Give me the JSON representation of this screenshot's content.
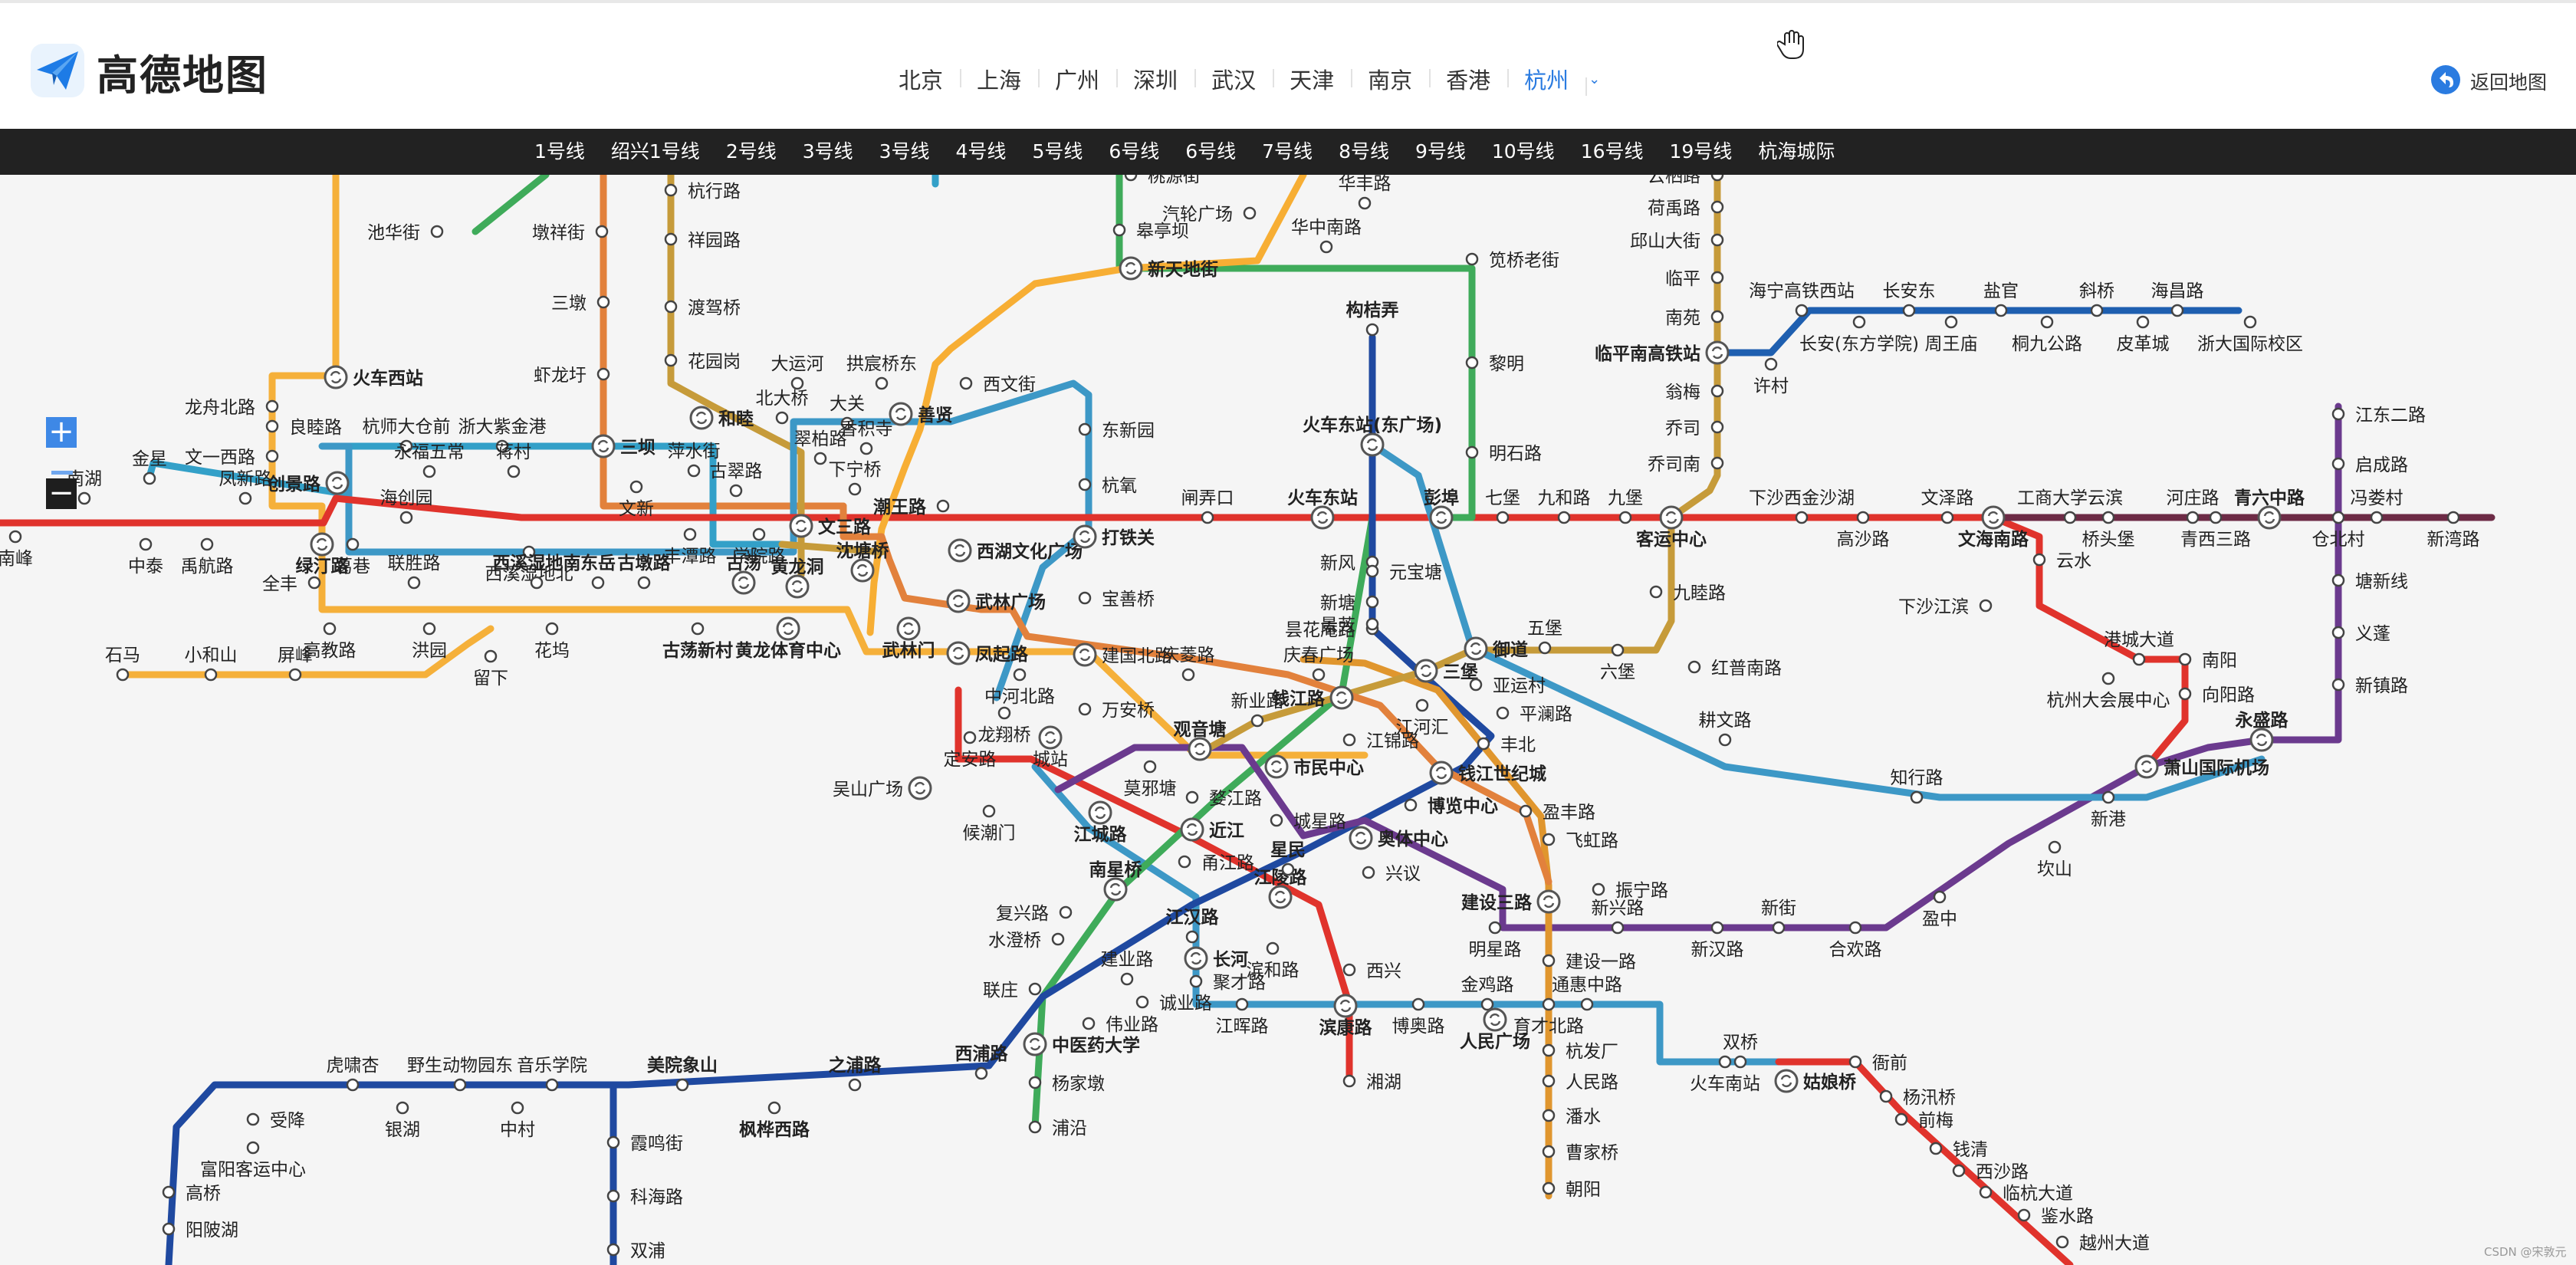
{
  "brand": {
    "name": "高德地图"
  },
  "cities": [
    {
      "label": "北京"
    },
    {
      "label": "上海"
    },
    {
      "label": "广州"
    },
    {
      "label": "深圳"
    },
    {
      "label": "武汉"
    },
    {
      "label": "天津"
    },
    {
      "label": "南京"
    },
    {
      "label": "香港"
    },
    {
      "label": "杭州",
      "active": true
    }
  ],
  "back_label": "返回地图",
  "lines": [
    "1号线",
    "绍兴1号线",
    "2号线",
    "3号线",
    "3号线",
    "4号线",
    "5号线",
    "6号线",
    "6号线",
    "7号线",
    "8号线",
    "9号线",
    "10号线",
    "16号线",
    "19号线",
    "杭海城际"
  ],
  "zoom": {
    "in": "+",
    "out": "−"
  },
  "watermark": "CSDN @宋敦元",
  "colors": {
    "l1": "#e0332c",
    "l2": "#e2813c",
    "l3": "#f7ae34",
    "l4": "#3fab5a",
    "l5": "#3d98c6",
    "l6": "#1f49a0",
    "l7": "#6b3a8e",
    "l9": "#e0962e",
    "l10": "#c69b3a",
    "l16": "#f5b03a",
    "l19": "#33a0c8",
    "hh": "#f2d04a",
    "hn": "#1e5fb0",
    "sx": "#6d2b46"
  },
  "stations": [
    {
      "name": "池华街"
    },
    {
      "name": "墩祥街"
    },
    {
      "name": "杭行路"
    },
    {
      "name": "祥园路"
    },
    {
      "name": "三墩"
    },
    {
      "name": "渡驾桥"
    },
    {
      "name": "虾龙圩"
    },
    {
      "name": "花园岗"
    },
    {
      "name": "火车西站"
    },
    {
      "name": "龙舟北路"
    },
    {
      "name": "良睦路"
    },
    {
      "name": "杭师大仓前"
    },
    {
      "name": "浙大紫金港"
    },
    {
      "name": "三坝"
    },
    {
      "name": "和睦"
    },
    {
      "name": "北大桥"
    },
    {
      "name": "大运河"
    },
    {
      "name": "拱宸桥东"
    },
    {
      "name": "西文街"
    },
    {
      "name": "善贤"
    },
    {
      "name": "大关"
    },
    {
      "name": "香积寺"
    },
    {
      "name": "翠柏路"
    },
    {
      "name": "萍水街"
    },
    {
      "name": "文一西路"
    },
    {
      "name": "金星"
    },
    {
      "name": "创景路"
    },
    {
      "name": "永福五常"
    },
    {
      "name": "蒋村"
    },
    {
      "name": "文新"
    },
    {
      "name": "古翠路"
    },
    {
      "name": "下宁桥"
    },
    {
      "name": "潮王路"
    },
    {
      "name": "凤新路"
    },
    {
      "name": "南湖"
    },
    {
      "name": "海创园"
    },
    {
      "name": "丰潭路"
    },
    {
      "name": "学院路"
    },
    {
      "name": "文三路"
    },
    {
      "name": "沈塘桥"
    },
    {
      "name": "西湖文化广场"
    },
    {
      "name": "中泰"
    },
    {
      "name": "禹航路"
    },
    {
      "name": "绿汀路"
    },
    {
      "name": "葛巷"
    },
    {
      "name": "西溪湿地北"
    },
    {
      "name": "全丰"
    },
    {
      "name": "联胜路"
    },
    {
      "name": "西溪湿地南"
    },
    {
      "name": "东岳"
    },
    {
      "name": "古墩路"
    },
    {
      "name": "古荡"
    },
    {
      "name": "黄龙洞"
    },
    {
      "name": "武林广场"
    },
    {
      "name": "高教路"
    },
    {
      "name": "洪园"
    },
    {
      "name": "花坞"
    },
    {
      "name": "古荡新村"
    },
    {
      "name": "黄龙体育中心"
    },
    {
      "name": "武林门"
    },
    {
      "name": "凤起路"
    },
    {
      "name": "石马"
    },
    {
      "name": "小和山"
    },
    {
      "name": "屏峰"
    },
    {
      "name": "留下"
    },
    {
      "name": "南峰"
    },
    {
      "name": "东新园"
    },
    {
      "name": "杭氧"
    },
    {
      "name": "闸弄口"
    },
    {
      "name": "火车东站"
    },
    {
      "name": "火车东站(东广场)"
    },
    {
      "name": "打铁关"
    },
    {
      "name": "宝善桥"
    },
    {
      "name": "建国北路"
    },
    {
      "name": "中河北路"
    },
    {
      "name": "庆菱路"
    },
    {
      "name": "庆春广场"
    },
    {
      "name": "龙翔桥"
    },
    {
      "name": "万安桥"
    },
    {
      "name": "定安路"
    },
    {
      "name": "城站"
    },
    {
      "name": "观音塘"
    },
    {
      "name": "新业路"
    },
    {
      "name": "钱江路"
    },
    {
      "name": "江锦路"
    },
    {
      "name": "吴山广场"
    },
    {
      "name": "候潮门"
    },
    {
      "name": "江城路"
    },
    {
      "name": "莫邪塘"
    },
    {
      "name": "婺江路"
    },
    {
      "name": "市民中心"
    },
    {
      "name": "城星路"
    },
    {
      "name": "近江"
    },
    {
      "name": "甬江路"
    },
    {
      "name": "南星桥"
    },
    {
      "name": "复兴路"
    },
    {
      "name": "水澄桥"
    },
    {
      "name": "联庄"
    },
    {
      "name": "江陵路"
    },
    {
      "name": "星民"
    },
    {
      "name": "江汉路"
    },
    {
      "name": "长河"
    },
    {
      "name": "滨和路"
    },
    {
      "name": "聚才路"
    },
    {
      "name": "江晖路"
    },
    {
      "name": "滨康路"
    },
    {
      "name": "建业路"
    },
    {
      "name": "诚业路"
    },
    {
      "name": "伟业路"
    },
    {
      "name": "中医药大学"
    },
    {
      "name": "杨家墩"
    },
    {
      "name": "浦沿"
    },
    {
      "name": "湘湖"
    },
    {
      "name": "西兴"
    },
    {
      "name": "博奥路"
    },
    {
      "name": "金鸡路"
    },
    {
      "name": "人民广场"
    },
    {
      "name": "育才北路"
    },
    {
      "name": "通惠中路"
    },
    {
      "name": "杭发厂"
    },
    {
      "name": "人民路"
    },
    {
      "name": "潘水"
    },
    {
      "name": "曹家桥"
    },
    {
      "name": "朝阳"
    },
    {
      "name": "建设一路"
    },
    {
      "name": "建设三路"
    },
    {
      "name": "明星路"
    },
    {
      "name": "振宁路"
    },
    {
      "name": "新兴路"
    },
    {
      "name": "新汉路"
    },
    {
      "name": "新街"
    },
    {
      "name": "合欢路"
    },
    {
      "name": "盈中"
    },
    {
      "name": "坎山"
    },
    {
      "name": "新港"
    },
    {
      "name": "萧山国际机场"
    },
    {
      "name": "奥体中心"
    },
    {
      "name": "兴议"
    },
    {
      "name": "博览中心"
    },
    {
      "name": "盈丰路"
    },
    {
      "name": "飞虹路"
    },
    {
      "name": "钱江世纪城"
    },
    {
      "name": "丰北"
    },
    {
      "name": "平澜路"
    },
    {
      "name": "江河汇"
    },
    {
      "name": "三堡"
    },
    {
      "name": "亚运村"
    },
    {
      "name": "御道"
    },
    {
      "name": "五堡"
    },
    {
      "name": "六堡"
    },
    {
      "name": "红普南路"
    },
    {
      "name": "昙花庵路"
    },
    {
      "name": "新塘"
    },
    {
      "name": "景芳"
    },
    {
      "name": "新风"
    },
    {
      "name": "元宝塘"
    },
    {
      "name": "彭埠"
    },
    {
      "name": "七堡"
    },
    {
      "name": "九和路"
    },
    {
      "name": "九堡"
    },
    {
      "name": "客运中心"
    },
    {
      "name": "九睦路"
    },
    {
      "name": "下沙西金沙湖"
    },
    {
      "name": "高沙路"
    },
    {
      "name": "文泽路"
    },
    {
      "name": "文海南路"
    },
    {
      "name": "工商大学云滨"
    },
    {
      "name": "桥头堡"
    },
    {
      "name": "河庄路"
    },
    {
      "name": "青西三路"
    },
    {
      "name": "青六中路"
    },
    {
      "name": "仓北村"
    },
    {
      "name": "冯娄村"
    },
    {
      "name": "新湾路"
    },
    {
      "name": "云水"
    },
    {
      "name": "下沙江滨"
    },
    {
      "name": "港城大道"
    },
    {
      "name": "南阳"
    },
    {
      "name": "杭州大会展中心"
    },
    {
      "name": "向阳路"
    },
    {
      "name": "永盛路"
    },
    {
      "name": "江东二路"
    },
    {
      "name": "启成路"
    },
    {
      "name": "塘新线"
    },
    {
      "name": "义蓬"
    },
    {
      "name": "新镇路"
    },
    {
      "name": "耕文路"
    },
    {
      "name": "知行路"
    },
    {
      "name": "构桔弄"
    },
    {
      "name": "桃源街"
    },
    {
      "name": "皋亭坝"
    },
    {
      "name": "汽轮广场"
    },
    {
      "name": "华丰路"
    },
    {
      "name": "新天地街"
    },
    {
      "name": "华中南路"
    },
    {
      "name": "笕桥老街"
    },
    {
      "name": "黎明"
    },
    {
      "name": "明石路"
    },
    {
      "name": "云栖路"
    },
    {
      "name": "荷禹路"
    },
    {
      "name": "邱山大街"
    },
    {
      "name": "临平"
    },
    {
      "name": "南苑"
    },
    {
      "name": "临平南高铁站"
    },
    {
      "name": "翁梅"
    },
    {
      "name": "乔司"
    },
    {
      "name": "乔司南"
    },
    {
      "name": "许村"
    },
    {
      "name": "海宁高铁西站"
    },
    {
      "name": "长安东"
    },
    {
      "name": "盐官"
    },
    {
      "name": "斜桥"
    },
    {
      "name": "海昌路"
    },
    {
      "name": "长安(东方学院)"
    },
    {
      "name": "周王庙"
    },
    {
      "name": "桐九公路"
    },
    {
      "name": "皮革城"
    },
    {
      "name": "浙大国际校区"
    },
    {
      "name": "虎啸杏"
    },
    {
      "name": "野生动物园东"
    },
    {
      "name": "音乐学院"
    },
    {
      "name": "美院象山"
    },
    {
      "name": "之浦路"
    },
    {
      "name": "西浦路"
    },
    {
      "name": "银湖"
    },
    {
      "name": "中村"
    },
    {
      "name": "枫桦西路"
    },
    {
      "name": "受降"
    },
    {
      "name": "富阳客运中心"
    },
    {
      "name": "高桥"
    },
    {
      "name": "阳陂湖"
    },
    {
      "name": "霞鸣街"
    },
    {
      "name": "科海路"
    },
    {
      "name": "双浦"
    },
    {
      "name": "火车南站"
    },
    {
      "name": "双桥"
    },
    {
      "name": "姑娘桥"
    },
    {
      "name": "衙前"
    },
    {
      "name": "杨汛桥"
    },
    {
      "name": "前梅"
    },
    {
      "name": "钱清"
    },
    {
      "name": "西沙路"
    },
    {
      "name": "临杭大道"
    },
    {
      "name": "鉴水路"
    },
    {
      "name": "越州大道"
    }
  ]
}
